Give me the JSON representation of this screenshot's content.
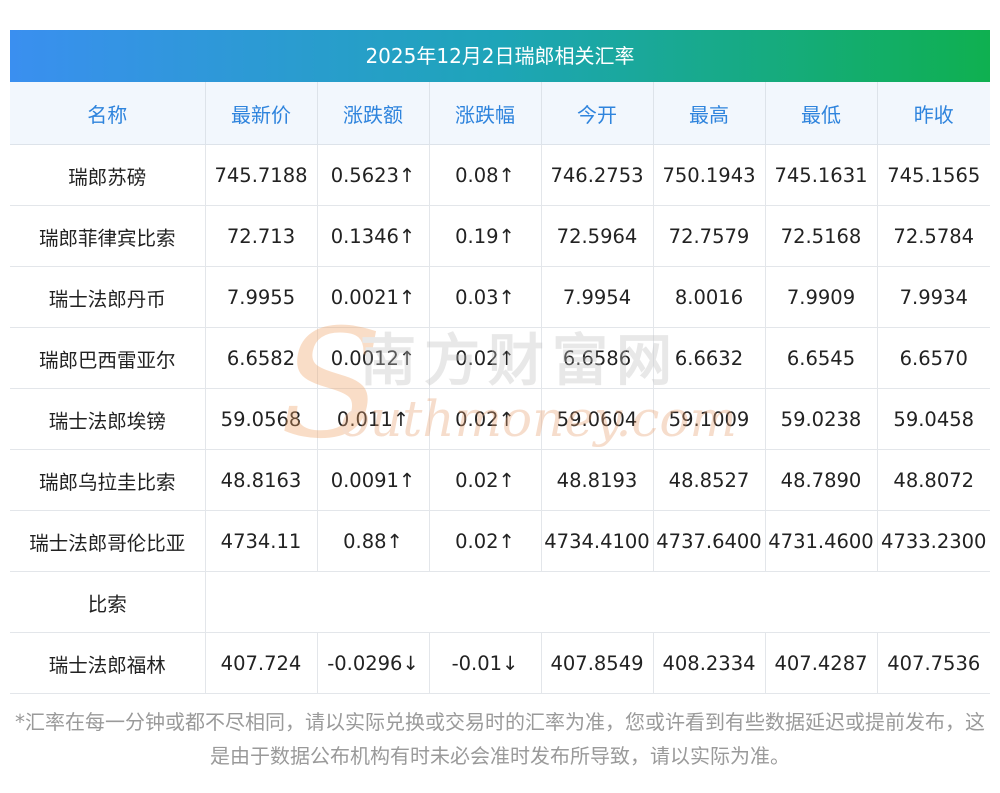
{
  "title": "2025年12月2日瑞郎相关汇率",
  "columns": [
    "名称",
    "最新价",
    "涨跌额",
    "涨跌幅",
    "今开",
    "最高",
    "最低",
    "昨收"
  ],
  "rows": [
    {
      "name": "瑞郎苏磅",
      "latest": "745.7188",
      "change": "0.5623↑",
      "pct": "0.08↑",
      "open": "746.2753",
      "high": "750.1943",
      "low": "745.1631",
      "prev": "745.1565",
      "direction": "up"
    },
    {
      "name": "瑞郎菲律宾比索",
      "latest": "72.713",
      "change": "0.1346↑",
      "pct": "0.19↑",
      "open": "72.5964",
      "high": "72.7579",
      "low": "72.5168",
      "prev": "72.5784",
      "direction": "up"
    },
    {
      "name": "瑞士法郎丹币",
      "latest": "7.9955",
      "change": "0.0021↑",
      "pct": "0.03↑",
      "open": "7.9954",
      "high": "8.0016",
      "low": "7.9909",
      "prev": "7.9934",
      "direction": "up"
    },
    {
      "name": "瑞郎巴西雷亚尔",
      "latest": "6.6582",
      "change": "0.0012↑",
      "pct": "0.02↑",
      "open": "6.6586",
      "high": "6.6632",
      "low": "6.6545",
      "prev": "6.6570",
      "direction": "up"
    },
    {
      "name": "瑞士法郎埃镑",
      "latest": "59.0568",
      "change": "0.011↑",
      "pct": "0.02↑",
      "open": "59.0604",
      "high": "59.1009",
      "low": "59.0238",
      "prev": "59.0458",
      "direction": "up"
    },
    {
      "name": "瑞郎乌拉圭比索",
      "latest": "48.8163",
      "change": "0.0091↑",
      "pct": "0.02↑",
      "open": "48.8193",
      "high": "48.8527",
      "low": "48.7890",
      "prev": "48.8072",
      "direction": "up"
    },
    {
      "name": "瑞士法郎哥伦比亚",
      "latest": "4734.11",
      "change": "0.88↑",
      "pct": "0.02↑",
      "open": "4734.4100",
      "high": "4737.6400",
      "low": "4731.4600",
      "prev": "4733.2300",
      "direction": "up"
    },
    {
      "name": "瑞士法郎福林",
      "latest": "407.724",
      "change": "-0.0296↓",
      "pct": "-0.01↓",
      "open": "407.8549",
      "high": "408.2334",
      "low": "407.4287",
      "prev": "407.7536",
      "direction": "down"
    }
  ],
  "wrap_text": "比索",
  "footnote": "*汇率在每一分钟或都不尽相同，请以实际兑换或交易时的汇率为准，您或许看到有些数据延迟或提前发布，这是由于数据公布机构有时未必会准时发布所导致，请以实际为准。",
  "watermark": {
    "cn": "南方财富网",
    "en": "outhmoney.com",
    "s": "S"
  },
  "colors": {
    "up": "#e60012",
    "down": "#1a8a1a",
    "header_text": "#2f84dd",
    "header_bg": "#f2f7fd"
  }
}
